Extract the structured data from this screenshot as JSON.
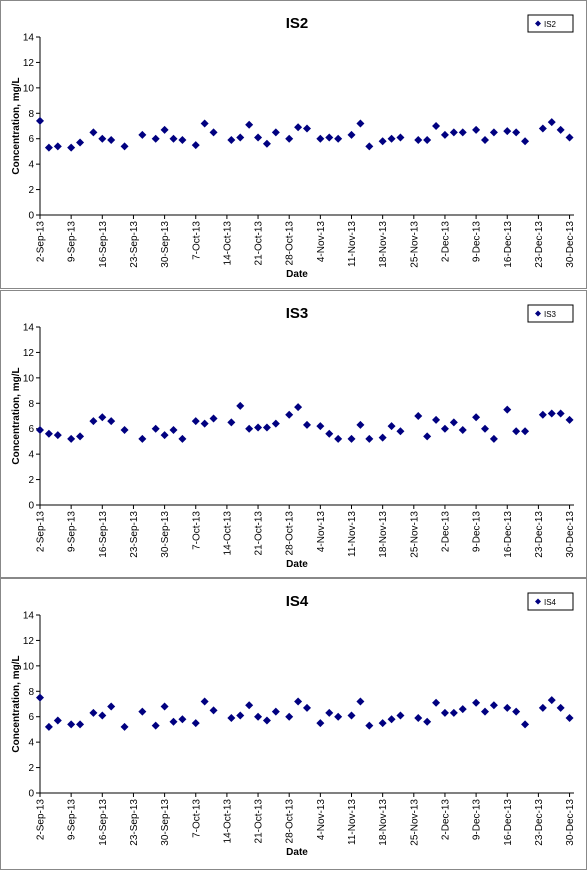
{
  "chart_data": [
    {
      "type": "scatter",
      "title": "IS2",
      "xlabel": "Date",
      "ylabel": "Concentration, mg/L",
      "legend": "upper right",
      "grid": false,
      "x": [
        "2013-09-02",
        "2013-09-04",
        "2013-09-06",
        "2013-09-09",
        "2013-09-11",
        "2013-09-14",
        "2013-09-16",
        "2013-09-18",
        "2013-09-21",
        "2013-09-25",
        "2013-09-28",
        "2013-09-30",
        "2013-10-02",
        "2013-10-04",
        "2013-10-07",
        "2013-10-09",
        "2013-10-11",
        "2013-10-15",
        "2013-10-17",
        "2013-10-19",
        "2013-10-21",
        "2013-10-23",
        "2013-10-25",
        "2013-10-28",
        "2013-10-30",
        "2013-11-01",
        "2013-11-04",
        "2013-11-06",
        "2013-11-08",
        "2013-11-11",
        "2013-11-13",
        "2013-11-15",
        "2013-11-18",
        "2013-11-20",
        "2013-11-22",
        "2013-11-26",
        "2013-11-28",
        "2013-11-30",
        "2013-12-02",
        "2013-12-04",
        "2013-12-06",
        "2013-12-09",
        "2013-12-11",
        "2013-12-13",
        "2013-12-16",
        "2013-12-18",
        "2013-12-20",
        "2013-12-24",
        "2013-12-26",
        "2013-12-28",
        "2013-12-30"
      ],
      "series": [
        {
          "name": "IS2",
          "color": "#000080",
          "values": [
            7.4,
            5.3,
            5.4,
            5.3,
            5.7,
            6.5,
            6.0,
            5.9,
            5.4,
            6.3,
            6.0,
            6.7,
            6.0,
            5.9,
            5.5,
            7.2,
            6.5,
            5.9,
            6.1,
            7.1,
            6.1,
            5.6,
            6.5,
            6.0,
            6.9,
            6.8,
            6.0,
            6.1,
            6.0,
            6.3,
            7.2,
            5.4,
            5.8,
            6.0,
            6.1,
            5.9,
            5.9,
            7.0,
            6.3,
            6.5,
            6.5,
            6.7,
            5.9,
            6.5,
            6.6,
            6.5,
            5.8,
            6.8,
            7.3,
            6.7,
            6.1
          ]
        }
      ],
      "xlim": [
        "2013-09-02",
        "2013-12-31"
      ],
      "xticks": [
        {
          "value": "2013-09-02",
          "label": "2-Sep-13"
        },
        {
          "value": "2013-09-09",
          "label": "9-Sep-13"
        },
        {
          "value": "2013-09-16",
          "label": "16-Sep-13"
        },
        {
          "value": "2013-09-23",
          "label": "23-Sep-13"
        },
        {
          "value": "2013-09-30",
          "label": "30-Sep-13"
        },
        {
          "value": "2013-10-07",
          "label": "7-Oct-13"
        },
        {
          "value": "2013-10-14",
          "label": "14-Oct-13"
        },
        {
          "value": "2013-10-21",
          "label": "21-Oct-13"
        },
        {
          "value": "2013-10-28",
          "label": "28-Oct-13"
        },
        {
          "value": "2013-11-04",
          "label": "4-Nov-13"
        },
        {
          "value": "2013-11-11",
          "label": "11-Nov-13"
        },
        {
          "value": "2013-11-18",
          "label": "18-Nov-13"
        },
        {
          "value": "2013-11-25",
          "label": "25-Nov-13"
        },
        {
          "value": "2013-12-02",
          "label": "2-Dec-13"
        },
        {
          "value": "2013-12-09",
          "label": "9-Dec-13"
        },
        {
          "value": "2013-12-16",
          "label": "16-Dec-13"
        },
        {
          "value": "2013-12-23",
          "label": "23-Dec-13"
        },
        {
          "value": "2013-12-30",
          "label": "30-Dec-13"
        }
      ],
      "ylim": [
        0,
        14
      ],
      "yticks": [
        0,
        2,
        4,
        6,
        8,
        10,
        12,
        14
      ]
    },
    {
      "type": "scatter",
      "title": "IS3",
      "xlabel": "Date",
      "ylabel": "Concentration, mg/L",
      "legend": "upper right",
      "grid": false,
      "x": [
        "2013-09-02",
        "2013-09-04",
        "2013-09-06",
        "2013-09-09",
        "2013-09-11",
        "2013-09-14",
        "2013-09-16",
        "2013-09-18",
        "2013-09-21",
        "2013-09-25",
        "2013-09-28",
        "2013-09-30",
        "2013-10-02",
        "2013-10-04",
        "2013-10-07",
        "2013-10-09",
        "2013-10-11",
        "2013-10-15",
        "2013-10-17",
        "2013-10-19",
        "2013-10-21",
        "2013-10-23",
        "2013-10-25",
        "2013-10-28",
        "2013-10-30",
        "2013-11-01",
        "2013-11-04",
        "2013-11-06",
        "2013-11-08",
        "2013-11-11",
        "2013-11-13",
        "2013-11-15",
        "2013-11-18",
        "2013-11-20",
        "2013-11-22",
        "2013-11-26",
        "2013-11-28",
        "2013-11-30",
        "2013-12-02",
        "2013-12-04",
        "2013-12-06",
        "2013-12-09",
        "2013-12-11",
        "2013-12-13",
        "2013-12-16",
        "2013-12-18",
        "2013-12-20",
        "2013-12-24",
        "2013-12-26",
        "2013-12-28",
        "2013-12-30"
      ],
      "series": [
        {
          "name": "IS3",
          "color": "#000080",
          "values": [
            5.9,
            5.6,
            5.5,
            5.2,
            5.4,
            6.6,
            6.9,
            6.6,
            5.9,
            5.2,
            6.0,
            5.5,
            5.9,
            5.2,
            6.6,
            6.4,
            6.8,
            6.5,
            7.8,
            6.0,
            6.1,
            6.1,
            6.4,
            7.1,
            7.7,
            6.3,
            6.2,
            5.6,
            5.2,
            5.2,
            6.3,
            5.2,
            5.3,
            6.2,
            5.8,
            7.0,
            5.4,
            6.7,
            6.0,
            6.5,
            5.9,
            6.9,
            6.0,
            5.2,
            7.5,
            5.8,
            5.8,
            7.1,
            7.2,
            7.2,
            6.7
          ]
        }
      ],
      "xlim": [
        "2013-09-02",
        "2013-12-31"
      ],
      "xticks": [
        {
          "value": "2013-09-02",
          "label": "2-Sep-13"
        },
        {
          "value": "2013-09-09",
          "label": "9-Sep-13"
        },
        {
          "value": "2013-09-16",
          "label": "16-Sep-13"
        },
        {
          "value": "2013-09-23",
          "label": "23-Sep-13"
        },
        {
          "value": "2013-09-30",
          "label": "30-Sep-13"
        },
        {
          "value": "2013-10-07",
          "label": "7-Oct-13"
        },
        {
          "value": "2013-10-14",
          "label": "14-Oct-13"
        },
        {
          "value": "2013-10-21",
          "label": "21-Oct-13"
        },
        {
          "value": "2013-10-28",
          "label": "28-Oct-13"
        },
        {
          "value": "2013-11-04",
          "label": "4-Nov-13"
        },
        {
          "value": "2013-11-11",
          "label": "11-Nov-13"
        },
        {
          "value": "2013-11-18",
          "label": "18-Nov-13"
        },
        {
          "value": "2013-11-25",
          "label": "25-Nov-13"
        },
        {
          "value": "2013-12-02",
          "label": "2-Dec-13"
        },
        {
          "value": "2013-12-09",
          "label": "9-Dec-13"
        },
        {
          "value": "2013-12-16",
          "label": "16-Dec-13"
        },
        {
          "value": "2013-12-23",
          "label": "23-Dec-13"
        },
        {
          "value": "2013-12-30",
          "label": "30-Dec-13"
        }
      ],
      "ylim": [
        0,
        14
      ],
      "yticks": [
        0,
        2,
        4,
        6,
        8,
        10,
        12,
        14
      ]
    },
    {
      "type": "scatter",
      "title": "IS4",
      "xlabel": "Date",
      "ylabel": "Concentration, mg/L",
      "legend": "upper right",
      "grid": false,
      "x": [
        "2013-09-02",
        "2013-09-04",
        "2013-09-06",
        "2013-09-09",
        "2013-09-11",
        "2013-09-14",
        "2013-09-16",
        "2013-09-18",
        "2013-09-21",
        "2013-09-25",
        "2013-09-28",
        "2013-09-30",
        "2013-10-02",
        "2013-10-04",
        "2013-10-07",
        "2013-10-09",
        "2013-10-11",
        "2013-10-15",
        "2013-10-17",
        "2013-10-19",
        "2013-10-21",
        "2013-10-23",
        "2013-10-25",
        "2013-10-28",
        "2013-10-30",
        "2013-11-01",
        "2013-11-04",
        "2013-11-06",
        "2013-11-08",
        "2013-11-11",
        "2013-11-13",
        "2013-11-15",
        "2013-11-18",
        "2013-11-20",
        "2013-11-22",
        "2013-11-26",
        "2013-11-28",
        "2013-11-30",
        "2013-12-02",
        "2013-12-04",
        "2013-12-06",
        "2013-12-09",
        "2013-12-11",
        "2013-12-13",
        "2013-12-16",
        "2013-12-18",
        "2013-12-20",
        "2013-12-24",
        "2013-12-26",
        "2013-12-28",
        "2013-12-30"
      ],
      "series": [
        {
          "name": "IS4",
          "color": "#000080",
          "values": [
            7.5,
            5.2,
            5.7,
            5.4,
            5.4,
            6.3,
            6.1,
            6.8,
            5.2,
            6.4,
            5.3,
            6.8,
            5.6,
            5.8,
            5.5,
            7.2,
            6.5,
            5.9,
            6.1,
            6.9,
            6.0,
            5.7,
            6.4,
            6.0,
            7.2,
            6.7,
            5.5,
            6.3,
            6.0,
            6.1,
            7.2,
            5.3,
            5.5,
            5.8,
            6.1,
            5.9,
            5.6,
            7.1,
            6.3,
            6.3,
            6.6,
            7.1,
            6.4,
            6.9,
            6.7,
            6.4,
            5.4,
            6.7,
            7.3,
            6.7,
            5.9
          ]
        }
      ],
      "xlim": [
        "2013-09-02",
        "2013-12-31"
      ],
      "xticks": [
        {
          "value": "2013-09-02",
          "label": "2-Sep-13"
        },
        {
          "value": "2013-09-09",
          "label": "9-Sep-13"
        },
        {
          "value": "2013-09-16",
          "label": "16-Sep-13"
        },
        {
          "value": "2013-09-23",
          "label": "23-Sep-13"
        },
        {
          "value": "2013-09-30",
          "label": "30-Sep-13"
        },
        {
          "value": "2013-10-07",
          "label": "7-Oct-13"
        },
        {
          "value": "2013-10-14",
          "label": "14-Oct-13"
        },
        {
          "value": "2013-10-21",
          "label": "21-Oct-13"
        },
        {
          "value": "2013-10-28",
          "label": "28-Oct-13"
        },
        {
          "value": "2013-11-04",
          "label": "4-Nov-13"
        },
        {
          "value": "2013-11-11",
          "label": "11-Nov-13"
        },
        {
          "value": "2013-11-18",
          "label": "18-Nov-13"
        },
        {
          "value": "2013-11-25",
          "label": "25-Nov-13"
        },
        {
          "value": "2013-12-02",
          "label": "2-Dec-13"
        },
        {
          "value": "2013-12-09",
          "label": "9-Dec-13"
        },
        {
          "value": "2013-12-16",
          "label": "16-Dec-13"
        },
        {
          "value": "2013-12-23",
          "label": "23-Dec-13"
        },
        {
          "value": "2013-12-30",
          "label": "30-Dec-13"
        }
      ],
      "ylim": [
        0,
        14
      ],
      "yticks": [
        0,
        2,
        4,
        6,
        8,
        10,
        12,
        14
      ]
    }
  ]
}
